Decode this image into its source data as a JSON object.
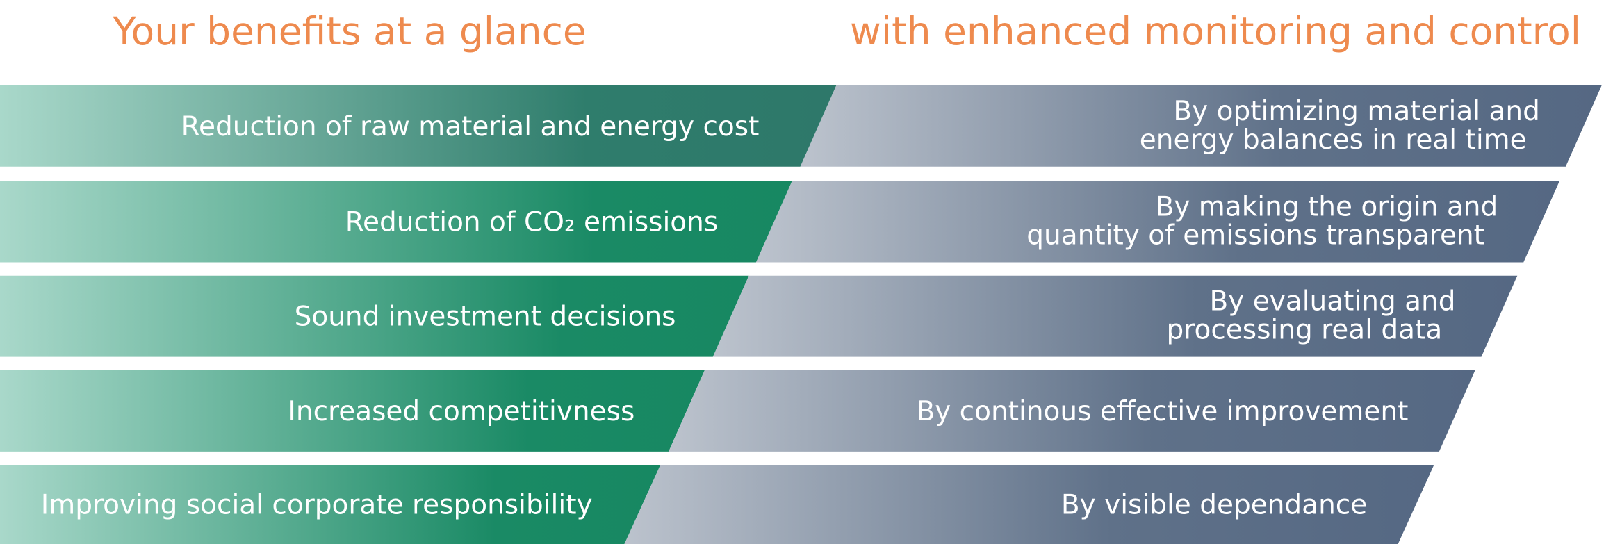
{
  "header": {
    "left_title": "Your benefits at a glance",
    "right_title": "with enhanced monitoring and control"
  },
  "rows": [
    {
      "benefit": "Reduction of raw material and energy cost",
      "method": [
        "By optimizing material and",
        "energy balances in real time"
      ]
    },
    {
      "benefit": "Reduction of CO₂ emissions",
      "method": [
        "By making the origin and",
        "quantity of emissions transparent"
      ]
    },
    {
      "benefit": "Sound investment decisions",
      "method": [
        "By evaluating and",
        "processing real data"
      ]
    },
    {
      "benefit": "Increased competitivness",
      "method": [
        "By continous effective improvement"
      ]
    },
    {
      "benefit": "Improving social corporate responsibility",
      "method": [
        "By visible dependance"
      ]
    }
  ]
}
